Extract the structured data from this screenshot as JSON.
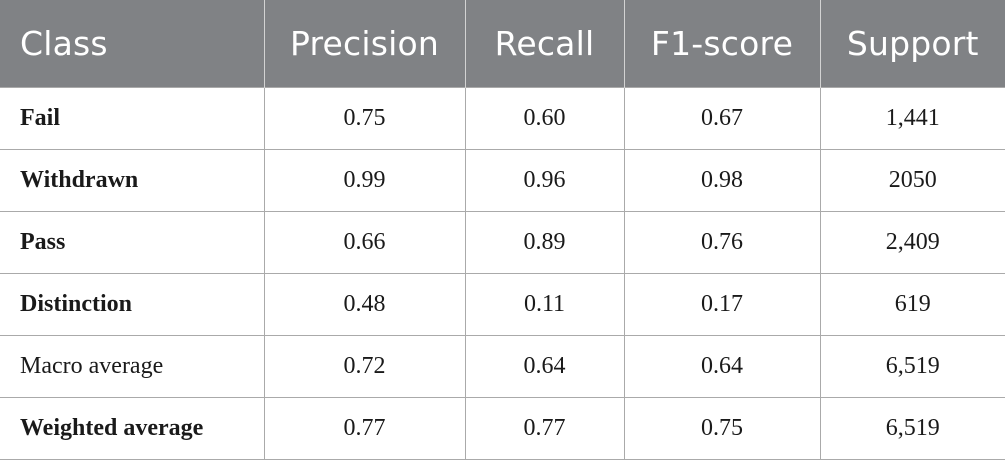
{
  "table": {
    "headers": [
      "Class",
      "Precision",
      "Recall",
      "F1-score",
      "Support"
    ],
    "rows": [
      {
        "label": "Fail",
        "bold": true,
        "precision": "0.75",
        "recall": "0.60",
        "f1": "0.67",
        "support": "1,441"
      },
      {
        "label": "Withdrawn",
        "bold": true,
        "precision": "0.99",
        "recall": "0.96",
        "f1": "0.98",
        "support": "2050"
      },
      {
        "label": "Pass",
        "bold": true,
        "precision": "0.66",
        "recall": "0.89",
        "f1": "0.76",
        "support": "2,409"
      },
      {
        "label": "Distinction",
        "bold": true,
        "precision": "0.48",
        "recall": "0.11",
        "f1": "0.17",
        "support": "619"
      },
      {
        "label": "Macro average",
        "bold": false,
        "precision": "0.72",
        "recall": "0.64",
        "f1": "0.64",
        "support": "6,519"
      },
      {
        "label": "Weighted average",
        "bold": true,
        "precision": "0.77",
        "recall": "0.77",
        "f1": "0.75",
        "support": "6,519"
      }
    ]
  },
  "colors": {
    "header_background": "#808285",
    "header_text": "#ffffff",
    "grid_line": "#aaaaaa"
  }
}
